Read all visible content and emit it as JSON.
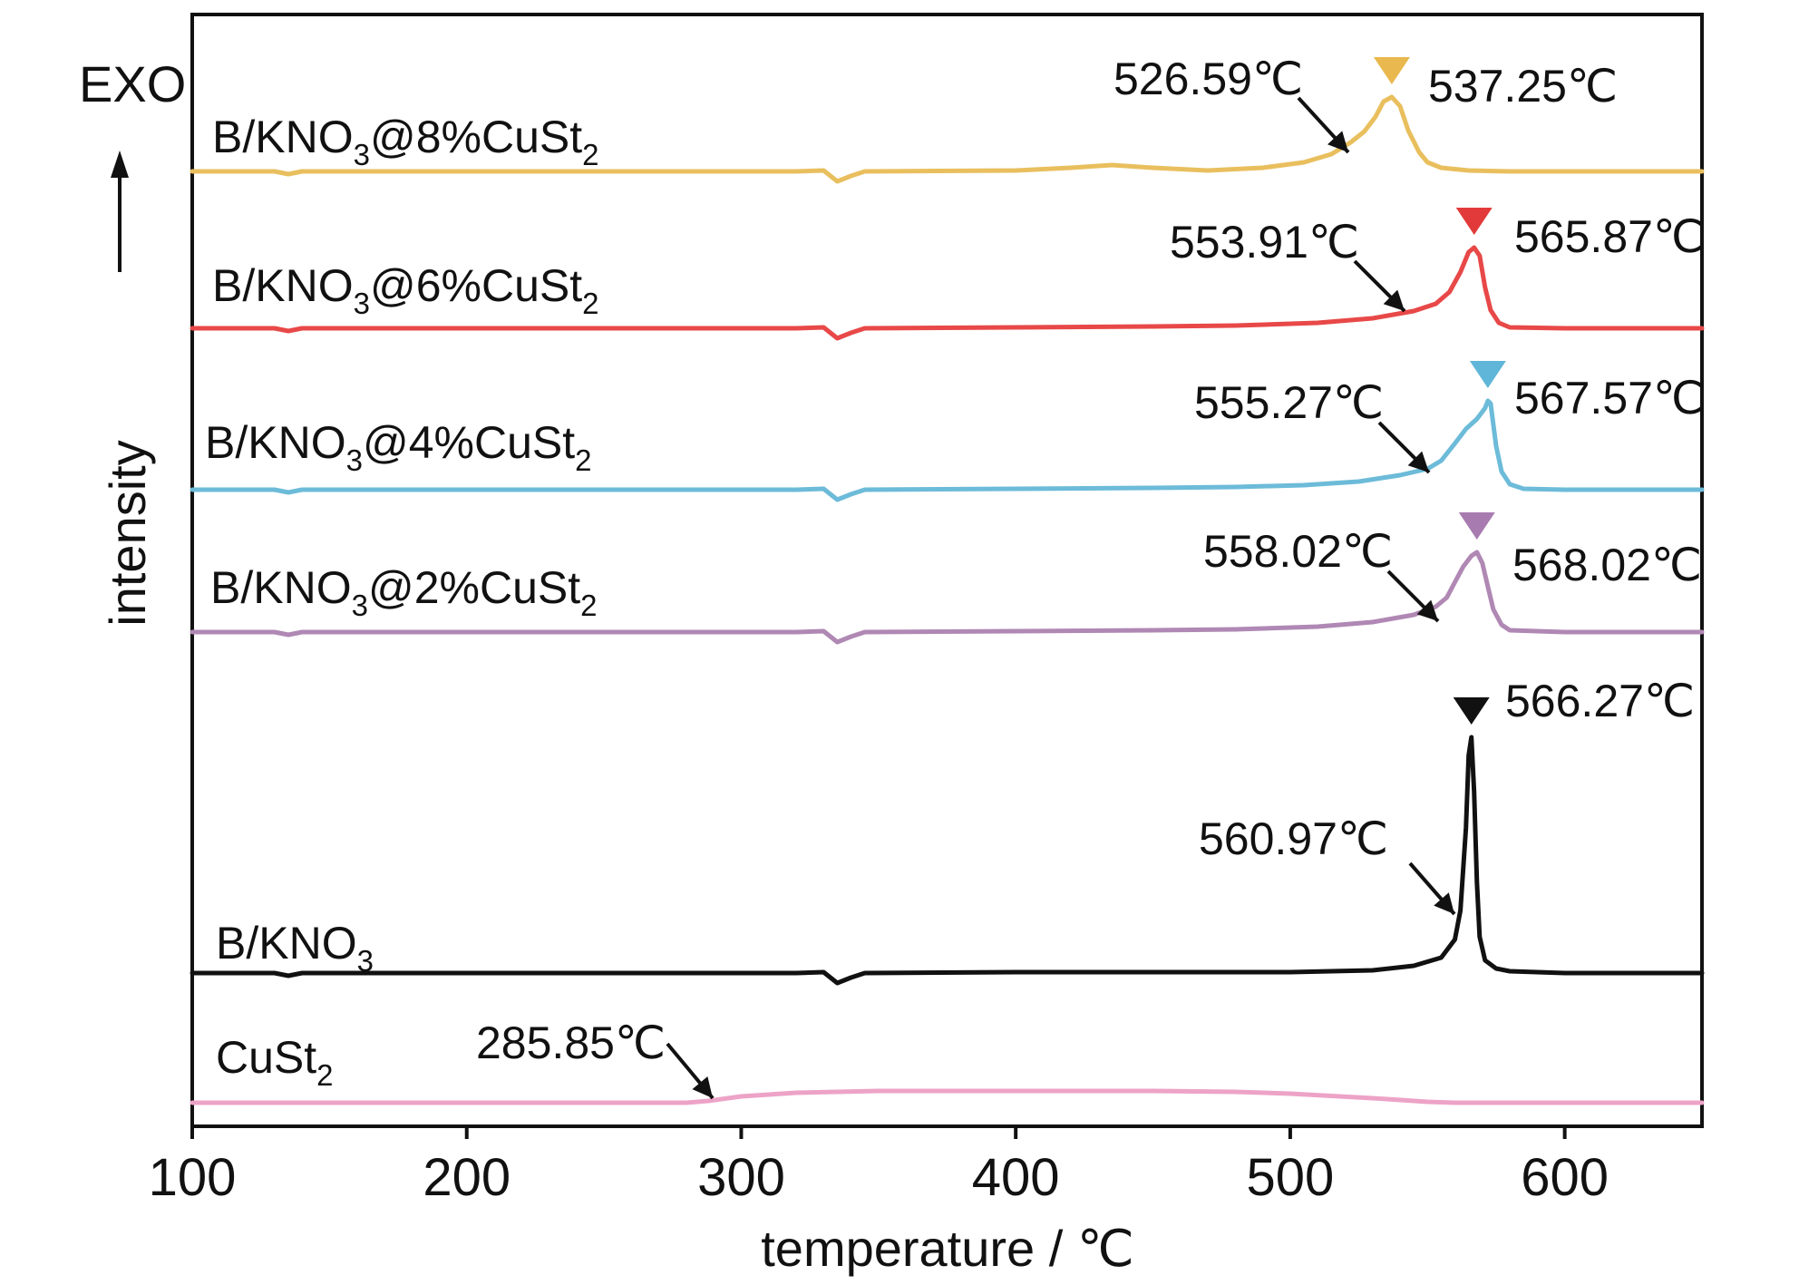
{
  "chart_data": {
    "type": "line",
    "xlabel": "temperature / ℃",
    "ylabel": "intensity",
    "direction_label": "EXO",
    "xlim": [
      100,
      650
    ],
    "x_ticks": [
      100,
      200,
      300,
      400,
      500,
      600
    ],
    "y_ticks": [],
    "grid": false,
    "series": [
      {
        "name": "B/KNO₃@8%CuSt₂",
        "color": "#e9bf5e",
        "marker_color": "#e9b84e",
        "label_parts": [
          {
            "text": "B/KNO",
            "sub": false
          },
          {
            "text": "3",
            "sub": true
          },
          {
            "text": "@8%CuSt",
            "sub": false
          },
          {
            "text": "2",
            "sub": true
          }
        ],
        "onset": 526.59,
        "onset_label": "526.59℃",
        "peak": 537.25,
        "peak_label": "537.25℃",
        "points": [
          [
            100,
            0
          ],
          [
            130,
            0
          ],
          [
            135,
            -3
          ],
          [
            140,
            0
          ],
          [
            320,
            0
          ],
          [
            330,
            1
          ],
          [
            335,
            -11
          ],
          [
            340,
            -5
          ],
          [
            345,
            0
          ],
          [
            400,
            1
          ],
          [
            420,
            4
          ],
          [
            435,
            7
          ],
          [
            450,
            4
          ],
          [
            470,
            1
          ],
          [
            490,
            4
          ],
          [
            505,
            10
          ],
          [
            515,
            19
          ],
          [
            522,
            32
          ],
          [
            527,
            44
          ],
          [
            531,
            60
          ],
          [
            534,
            77
          ],
          [
            537,
            82
          ],
          [
            540,
            72
          ],
          [
            543,
            45
          ],
          [
            547,
            21
          ],
          [
            550,
            10
          ],
          [
            555,
            4
          ],
          [
            565,
            1
          ],
          [
            580,
            0
          ],
          [
            600,
            0
          ],
          [
            650,
            0
          ]
        ]
      },
      {
        "name": "B/KNO₃@6%CuSt₂",
        "color": "#e84848",
        "marker_color": "#e23a3a",
        "label_parts": [
          {
            "text": "B/KNO",
            "sub": false
          },
          {
            "text": "3",
            "sub": true
          },
          {
            "text": "@6%CuSt",
            "sub": false
          },
          {
            "text": "2",
            "sub": true
          }
        ],
        "onset": 553.91,
        "onset_label": "553.91℃",
        "peak": 565.87,
        "peak_label": "565.87℃",
        "points": [
          [
            100,
            0
          ],
          [
            130,
            0
          ],
          [
            135,
            -3
          ],
          [
            140,
            0
          ],
          [
            320,
            0
          ],
          [
            330,
            1
          ],
          [
            335,
            -11
          ],
          [
            340,
            -5
          ],
          [
            345,
            0
          ],
          [
            400,
            1
          ],
          [
            450,
            2
          ],
          [
            480,
            3
          ],
          [
            510,
            6
          ],
          [
            530,
            11
          ],
          [
            545,
            19
          ],
          [
            553,
            27
          ],
          [
            558,
            40
          ],
          [
            562,
            62
          ],
          [
            565,
            84
          ],
          [
            567,
            89
          ],
          [
            569,
            80
          ],
          [
            571,
            45
          ],
          [
            573,
            20
          ],
          [
            576,
            6
          ],
          [
            580,
            1
          ],
          [
            600,
            0
          ],
          [
            650,
            0
          ]
        ]
      },
      {
        "name": "B/KNO₃@4%CuSt₂",
        "color": "#6cbbd9",
        "marker_color": "#5fb6d8",
        "label_parts": [
          {
            "text": "B/KNO",
            "sub": false
          },
          {
            "text": "3",
            "sub": true
          },
          {
            "text": "@4%CuSt",
            "sub": false
          },
          {
            "text": "2",
            "sub": true
          }
        ],
        "onset": 555.27,
        "onset_label": "555.27℃",
        "peak": 567.57,
        "peak_label": "567.57℃",
        "points": [
          [
            100,
            0
          ],
          [
            130,
            0
          ],
          [
            135,
            -3
          ],
          [
            140,
            0
          ],
          [
            320,
            0
          ],
          [
            330,
            1
          ],
          [
            335,
            -11
          ],
          [
            340,
            -5
          ],
          [
            345,
            0
          ],
          [
            400,
            1
          ],
          [
            450,
            2
          ],
          [
            480,
            3
          ],
          [
            505,
            5
          ],
          [
            525,
            9
          ],
          [
            540,
            16
          ],
          [
            550,
            23
          ],
          [
            555,
            32
          ],
          [
            560,
            51
          ],
          [
            564,
            67
          ],
          [
            568,
            78
          ],
          [
            571,
            90
          ],
          [
            572,
            98
          ],
          [
            573,
            95
          ],
          [
            575,
            48
          ],
          [
            577,
            20
          ],
          [
            580,
            6
          ],
          [
            585,
            1
          ],
          [
            600,
            0
          ],
          [
            650,
            0
          ]
        ]
      },
      {
        "name": "B/KNO₃@2%CuSt₂",
        "color": "#b088b4",
        "marker_color": "#a87bb0",
        "label_parts": [
          {
            "text": "B/KNO",
            "sub": false
          },
          {
            "text": "3",
            "sub": true
          },
          {
            "text": "@2%CuSt",
            "sub": false
          },
          {
            "text": "2",
            "sub": true
          }
        ],
        "onset": 558.02,
        "onset_label": "558.02℃",
        "peak": 568.02,
        "peak_label": "568.02℃",
        "points": [
          [
            100,
            0
          ],
          [
            130,
            0
          ],
          [
            135,
            -3
          ],
          [
            140,
            0
          ],
          [
            320,
            0
          ],
          [
            330,
            1
          ],
          [
            335,
            -11
          ],
          [
            340,
            -5
          ],
          [
            345,
            0
          ],
          [
            400,
            1
          ],
          [
            450,
            2
          ],
          [
            480,
            3
          ],
          [
            510,
            6
          ],
          [
            530,
            11
          ],
          [
            545,
            19
          ],
          [
            553,
            28
          ],
          [
            557,
            38
          ],
          [
            560,
            55
          ],
          [
            563,
            72
          ],
          [
            566,
            84
          ],
          [
            568,
            88
          ],
          [
            570,
            76
          ],
          [
            572,
            50
          ],
          [
            574,
            25
          ],
          [
            577,
            8
          ],
          [
            580,
            2
          ],
          [
            600,
            0
          ],
          [
            650,
            0
          ]
        ]
      },
      {
        "name": "B/KNO₃",
        "color": "#111111",
        "marker_color": "#111111",
        "label_parts": [
          {
            "text": "B/KNO",
            "sub": false
          },
          {
            "text": "3",
            "sub": true
          }
        ],
        "onset": 560.97,
        "onset_label": "560.97℃",
        "peak": 566.27,
        "peak_label": "566.27℃",
        "points": [
          [
            100,
            0
          ],
          [
            130,
            0
          ],
          [
            135,
            -3
          ],
          [
            140,
            0
          ],
          [
            320,
            0
          ],
          [
            330,
            1
          ],
          [
            335,
            -11
          ],
          [
            340,
            -5
          ],
          [
            345,
            0
          ],
          [
            400,
            1
          ],
          [
            500,
            1
          ],
          [
            530,
            3
          ],
          [
            545,
            8
          ],
          [
            555,
            17
          ],
          [
            560,
            37
          ],
          [
            562,
            69
          ],
          [
            564,
            160
          ],
          [
            565,
            240
          ],
          [
            566,
            260
          ],
          [
            567,
            200
          ],
          [
            568,
            100
          ],
          [
            569,
            40
          ],
          [
            571,
            14
          ],
          [
            575,
            5
          ],
          [
            580,
            2
          ],
          [
            600,
            0
          ],
          [
            650,
            0
          ]
        ]
      },
      {
        "name": "CuSt₂",
        "color": "#eda3c7",
        "marker_color": "#eda3c7",
        "label_parts": [
          {
            "text": "CuSt",
            "sub": false
          },
          {
            "text": "2",
            "sub": true
          }
        ],
        "onset": 285.85,
        "onset_label": "285.85℃",
        "peak": null,
        "peak_label": "",
        "points": [
          [
            100,
            0
          ],
          [
            200,
            0
          ],
          [
            280,
            0
          ],
          [
            288,
            2
          ],
          [
            300,
            7
          ],
          [
            320,
            11
          ],
          [
            350,
            13
          ],
          [
            400,
            13
          ],
          [
            450,
            13
          ],
          [
            480,
            12
          ],
          [
            500,
            10
          ],
          [
            530,
            5
          ],
          [
            550,
            1
          ],
          [
            560,
            0
          ],
          [
            600,
            0
          ],
          [
            650,
            0
          ]
        ]
      }
    ]
  }
}
